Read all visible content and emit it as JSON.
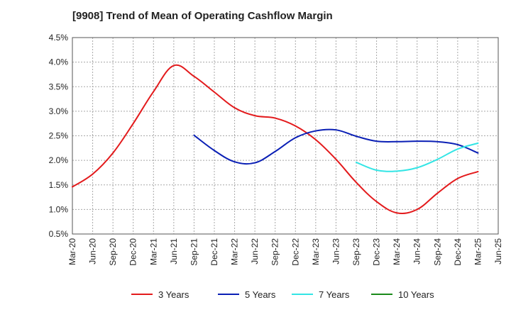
{
  "title": "[9908]  Trend of Mean of Operating Cashflow Margin",
  "chart_data": {
    "type": "line",
    "title": "[9908]  Trend of Mean of Operating Cashflow Margin",
    "xlabel": "",
    "ylabel": "",
    "x_ticks": [
      "Mar-20",
      "Jun-20",
      "Sep-20",
      "Dec-20",
      "Mar-21",
      "Jun-21",
      "Sep-21",
      "Dec-21",
      "Mar-22",
      "Jun-22",
      "Sep-22",
      "Dec-22",
      "Mar-23",
      "Jun-23",
      "Sep-23",
      "Dec-23",
      "Mar-24",
      "Jun-24",
      "Sep-24",
      "Dec-24",
      "Mar-25",
      "Jun-25"
    ],
    "y_ticks": [
      "0.5%",
      "1.0%",
      "1.5%",
      "2.0%",
      "2.5%",
      "3.0%",
      "3.5%",
      "4.0%",
      "4.5%"
    ],
    "ylim": [
      0.5,
      4.5
    ],
    "y_unit": "%",
    "grid": true,
    "legend_position": "bottom",
    "series": [
      {
        "name": "3 Years",
        "color": "#e31a1c",
        "x": [
          "Mar-20",
          "Jun-20",
          "Sep-20",
          "Dec-20",
          "Mar-21",
          "Jun-21",
          "Sep-21",
          "Dec-21",
          "Mar-22",
          "Jun-22",
          "Sep-22",
          "Dec-22",
          "Mar-23",
          "Jun-23",
          "Sep-23",
          "Dec-23",
          "Mar-24",
          "Jun-24",
          "Sep-24",
          "Dec-24",
          "Mar-25"
        ],
        "values": [
          1.46,
          1.72,
          2.15,
          2.75,
          3.4,
          3.93,
          3.71,
          3.39,
          3.07,
          2.91,
          2.86,
          2.7,
          2.42,
          2.02,
          1.55,
          1.16,
          0.93,
          1.0,
          1.33,
          1.63,
          1.77
        ]
      },
      {
        "name": "5 Years",
        "color": "#0a1fb5",
        "x": [
          "Sep-21",
          "Dec-21",
          "Mar-22",
          "Jun-22",
          "Sep-22",
          "Dec-22",
          "Mar-23",
          "Jun-23",
          "Sep-23",
          "Dec-23",
          "Mar-24",
          "Jun-24",
          "Sep-24",
          "Dec-24",
          "Mar-25"
        ],
        "values": [
          2.51,
          2.2,
          1.97,
          1.95,
          2.18,
          2.46,
          2.6,
          2.62,
          2.49,
          2.39,
          2.38,
          2.39,
          2.38,
          2.32,
          2.15
        ]
      },
      {
        "name": "7 Years",
        "color": "#33e5e5",
        "x": [
          "Sep-23",
          "Dec-23",
          "Mar-24",
          "Jun-24",
          "Sep-24",
          "Dec-24",
          "Mar-25"
        ],
        "values": [
          1.96,
          1.8,
          1.78,
          1.85,
          2.02,
          2.23,
          2.35
        ]
      },
      {
        "name": "10 Years",
        "color": "#1a8a1a",
        "x": [],
        "values": []
      }
    ]
  }
}
